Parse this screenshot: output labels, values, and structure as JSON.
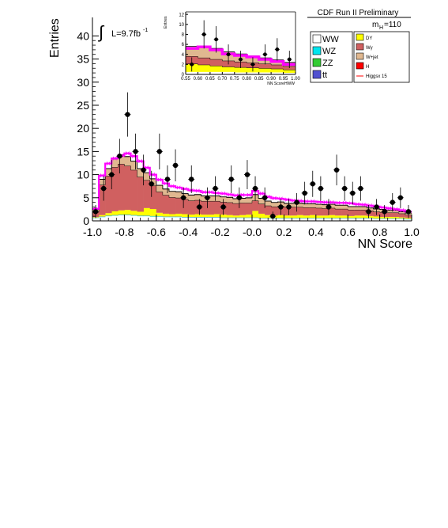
{
  "chart_data": [
    {
      "type": "bar",
      "stacked": true,
      "ylabel": "Entries",
      "xlabel": "NN Score",
      "xlim": [
        -1.0,
        1.0
      ],
      "ylim": [
        0,
        44
      ],
      "x_ticks": [
        "-1.0",
        "-0.8",
        "-0.6",
        "-0.4",
        "-0.2",
        "-0.0",
        "0.2",
        "0.4",
        "0.6",
        "0.8",
        "1.0"
      ],
      "y_ticks": [
        "0",
        "5",
        "10",
        "15",
        "20",
        "25",
        "30",
        "35",
        "40"
      ],
      "lumi_label": "L=9.7fb",
      "lumi_sup": "-1",
      "header": "CDF Run II Preliminary",
      "mass_label": "m",
      "mass_sub": "H",
      "mass_value": "=110",
      "legend_position": "top-right",
      "bins": 50,
      "colors": {
        "WW": "#ffffff",
        "WZ": "#00e5ee",
        "ZZ": "#33cc33",
        "ttbar": "#5050d0",
        "DY": "#ffff00",
        "Wgamma": "#d06060",
        "Wjet": "#e0b890",
        "H": "#ff0000",
        "signal": "#ff00ff",
        "data": "#000000"
      },
      "series": [
        {
          "name": "WW",
          "key": "WW",
          "values": [
            0.6,
            0.8,
            1.0,
            1.1,
            1.2,
            1.2,
            1.1,
            1.0,
            1.0,
            0.9,
            0.9,
            0.8,
            0.8,
            0.8,
            0.7,
            0.7,
            0.7,
            0.7,
            0.7,
            0.7,
            0.6,
            0.6,
            0.6,
            0.6,
            0.6,
            0.6,
            0.5,
            0.5,
            0.5,
            0.5,
            0.5,
            0.5,
            0.5,
            0.5,
            0.5,
            0.5,
            0.5,
            0.5,
            0.5,
            0.5,
            0.5,
            0.5,
            0.5,
            0.5,
            0.4,
            0.4,
            0.4,
            0.4,
            0.4,
            0.3
          ]
        },
        {
          "name": "WZ",
          "key": "WZ",
          "values": [
            0.05,
            0.05,
            0.06,
            0.06,
            0.06,
            0.06,
            0.06,
            0.06,
            0.06,
            0.06,
            0.05,
            0.05,
            0.05,
            0.05,
            0.05,
            0.05,
            0.05,
            0.05,
            0.05,
            0.05,
            0.05,
            0.05,
            0.05,
            0.05,
            0.05,
            0.05,
            0.05,
            0.05,
            0.05,
            0.05,
            0.05,
            0.05,
            0.05,
            0.05,
            0.05,
            0.05,
            0.05,
            0.05,
            0.05,
            0.05,
            0.05,
            0.05,
            0.05,
            0.05,
            0.05,
            0.05,
            0.05,
            0.05,
            0.05,
            0.05
          ]
        },
        {
          "name": "ZZ",
          "key": "ZZ",
          "values": [
            0.05,
            0.05,
            0.06,
            0.06,
            0.06,
            0.06,
            0.06,
            0.06,
            0.06,
            0.06,
            0.05,
            0.05,
            0.05,
            0.05,
            0.05,
            0.05,
            0.05,
            0.05,
            0.05,
            0.05,
            0.05,
            0.05,
            0.05,
            0.05,
            0.05,
            0.05,
            0.05,
            0.05,
            0.05,
            0.05,
            0.05,
            0.05,
            0.05,
            0.05,
            0.05,
            0.05,
            0.05,
            0.05,
            0.05,
            0.05,
            0.05,
            0.05,
            0.05,
            0.05,
            0.05,
            0.05,
            0.05,
            0.05,
            0.05,
            0.05
          ]
        },
        {
          "name": "tt",
          "key": "ttbar",
          "values": [
            0.05,
            0.05,
            0.05,
            0.05,
            0.05,
            0.05,
            0.05,
            0.05,
            0.05,
            0.05,
            0.05,
            0.05,
            0.05,
            0.05,
            0.05,
            0.05,
            0.05,
            0.05,
            0.05,
            0.05,
            0.05,
            0.05,
            0.05,
            0.05,
            0.05,
            0.05,
            0.05,
            0.05,
            0.05,
            0.05,
            0.05,
            0.05,
            0.05,
            0.05,
            0.05,
            0.05,
            0.05,
            0.05,
            0.05,
            0.05,
            0.05,
            0.05,
            0.05,
            0.05,
            0.05,
            0.05,
            0.05,
            0.05,
            0.05,
            0.05
          ]
        },
        {
          "name": "DY",
          "key": "DY",
          "values": [
            0.1,
            0.3,
            0.5,
            0.8,
            0.9,
            1.0,
            0.9,
            0.8,
            1.6,
            1.5,
            0.7,
            0.6,
            0.5,
            0.6,
            0.6,
            0.5,
            0.6,
            0.5,
            0.5,
            0.6,
            0.6,
            0.5,
            0.4,
            0.5,
            0.6,
            1.4,
            0.9,
            0.6,
            0.5,
            0.6,
            0.5,
            0.5,
            0.6,
            0.5,
            0.6,
            0.5,
            0.5,
            0.6,
            0.5,
            0.5,
            0.4,
            0.5,
            0.5,
            0.4,
            0.4,
            0.3,
            0.3,
            0.3,
            0.2,
            0.2
          ]
        },
        {
          "name": "Wγ",
          "key": "Wgamma",
          "values": [
            1.0,
            6.5,
            8.0,
            9.5,
            10.0,
            9.5,
            8.8,
            7.5,
            6.0,
            5.0,
            4.5,
            4.0,
            3.6,
            3.4,
            3.2,
            3.0,
            3.0,
            2.9,
            2.9,
            2.8,
            2.7,
            2.7,
            2.6,
            2.6,
            2.5,
            2.2,
            2.1,
            2.0,
            1.9,
            1.9,
            1.8,
            1.8,
            1.7,
            1.7,
            1.6,
            1.6,
            1.5,
            1.5,
            1.4,
            1.4,
            1.3,
            1.2,
            1.2,
            1.1,
            1.0,
            1.0,
            0.9,
            0.9,
            0.8,
            0.6
          ]
        },
        {
          "name": "W+jet",
          "key": "Wjet",
          "values": [
            0.6,
            1.2,
            1.6,
            1.8,
            2.0,
            2.0,
            1.9,
            1.8,
            1.6,
            1.5,
            1.4,
            1.3,
            1.3,
            1.3,
            1.2,
            1.2,
            1.2,
            1.1,
            1.1,
            1.1,
            1.1,
            1.1,
            1.0,
            1.0,
            1.1,
            1.3,
            1.2,
            1.0,
            0.9,
            0.9,
            0.8,
            0.8,
            0.8,
            0.8,
            0.8,
            0.8,
            0.8,
            0.8,
            0.8,
            0.8,
            0.7,
            0.7,
            0.7,
            0.6,
            0.6,
            0.6,
            0.5,
            0.5,
            0.4,
            0.4
          ]
        },
        {
          "name": "H",
          "key": "H",
          "values": [
            0.05,
            0.05,
            0.05,
            0.05,
            0.05,
            0.05,
            0.05,
            0.05,
            0.05,
            0.05,
            0.05,
            0.05,
            0.05,
            0.05,
            0.05,
            0.05,
            0.05,
            0.05,
            0.05,
            0.05,
            0.05,
            0.05,
            0.05,
            0.05,
            0.05,
            0.05,
            0.05,
            0.05,
            0.05,
            0.05,
            0.05,
            0.05,
            0.05,
            0.05,
            0.05,
            0.05,
            0.05,
            0.05,
            0.05,
            0.05,
            0.05,
            0.05,
            0.05,
            0.05,
            0.05,
            0.05,
            0.05,
            0.05,
            0.05,
            0.05
          ]
        }
      ],
      "signal": {
        "name": "Higgsx 15",
        "key": "signal",
        "values": [
          2.6,
          9.8,
          12.4,
          13.5,
          14.1,
          14.6,
          14.0,
          12.9,
          11.5,
          10.0,
          8.9,
          8.1,
          7.5,
          7.2,
          6.9,
          6.6,
          6.5,
          6.2,
          6.2,
          6.0,
          5.9,
          5.7,
          5.5,
          5.6,
          5.6,
          6.5,
          5.9,
          5.2,
          4.9,
          4.8,
          4.6,
          4.4,
          4.3,
          4.2,
          4.2,
          4.1,
          4.0,
          4.0,
          3.9,
          3.9,
          3.8,
          3.6,
          3.5,
          3.3,
          3.1,
          2.9,
          2.7,
          2.5,
          2.3,
          2.0
        ]
      },
      "data": {
        "name": "data",
        "x": [
          -0.98,
          -0.93,
          -0.88,
          -0.83,
          -0.78,
          -0.73,
          -0.68,
          -0.63,
          -0.58,
          -0.53,
          -0.48,
          -0.43,
          -0.38,
          -0.33,
          -0.28,
          -0.23,
          -0.18,
          -0.13,
          -0.08,
          -0.03,
          0.02,
          0.08,
          0.13,
          0.18,
          0.23,
          0.28,
          0.33,
          0.38,
          0.43,
          0.48,
          0.53,
          0.58,
          0.63,
          0.68,
          0.73,
          0.78,
          0.83,
          0.88,
          0.93,
          0.98
        ],
        "y": [
          2,
          7,
          10,
          14,
          23,
          15,
          11,
          8,
          15,
          9,
          12,
          5,
          9,
          3,
          5,
          7,
          3,
          9,
          5,
          10,
          7,
          5,
          1,
          3,
          3,
          4,
          6,
          8,
          7,
          3,
          11,
          7,
          6,
          7,
          2,
          3,
          2,
          4,
          5,
          2
        ]
      }
    },
    {
      "type": "bar",
      "stacked": true,
      "inset": true,
      "ylabel": "Entries",
      "xlabel": "NN ScoreHWW",
      "xlim": [
        0.55,
        1.0
      ],
      "ylim": [
        0,
        12.5
      ],
      "x_ticks": [
        "0.55",
        "0.60",
        "0.65",
        "0.70",
        "0.75",
        "0.80",
        "0.85",
        "0.90",
        "0.95",
        "1.00"
      ],
      "y_ticks": [
        "0",
        "2",
        "4",
        "6",
        "8",
        "10",
        "12"
      ],
      "bins": 9,
      "series": [
        {
          "name": "WW",
          "key": "WW",
          "values": [
            0.5,
            0.5,
            0.5,
            0.5,
            0.4,
            0.4,
            0.4,
            0.4,
            0.3
          ]
        },
        {
          "name": "DY",
          "key": "DY",
          "values": [
            1.6,
            1.4,
            1.2,
            1.0,
            1.0,
            0.9,
            0.8,
            0.7,
            0.6
          ]
        },
        {
          "name": "Wγ",
          "key": "Wgamma",
          "values": [
            1.5,
            1.4,
            1.3,
            1.2,
            1.1,
            1.0,
            0.9,
            0.8,
            0.7
          ]
        },
        {
          "name": "W+jet",
          "key": "Wjet",
          "values": [
            2.0,
            2.4,
            2.2,
            1.8,
            1.6,
            1.4,
            1.2,
            1.0,
            0.8
          ]
        }
      ],
      "signal": {
        "name": "Higgsx 15",
        "key": "signal",
        "values": [
          5.2,
          5.5,
          4.9,
          4.1,
          3.8,
          3.5,
          3.0,
          2.6,
          2.0
        ]
      },
      "data": {
        "name": "data",
        "x": [
          0.575,
          0.625,
          0.675,
          0.725,
          0.775,
          0.825,
          0.875,
          0.925,
          0.975
        ],
        "y": [
          2,
          8,
          7,
          4,
          3,
          2,
          4,
          5,
          3
        ]
      }
    }
  ],
  "legend": {
    "left": [
      {
        "label": "WW",
        "key": "WW"
      },
      {
        "label": "WZ",
        "key": "WZ"
      },
      {
        "label": "ZZ",
        "key": "ZZ"
      },
      {
        "label": "tt",
        "key": "ttbar"
      }
    ],
    "right": [
      {
        "label": "DY",
        "key": "DY"
      },
      {
        "label": "Wγ",
        "key": "Wgamma"
      },
      {
        "label": "W+jet",
        "key": "Wjet"
      },
      {
        "label": "H",
        "key": "H"
      },
      {
        "label": "Higgsx 15",
        "key": "signal"
      }
    ]
  }
}
